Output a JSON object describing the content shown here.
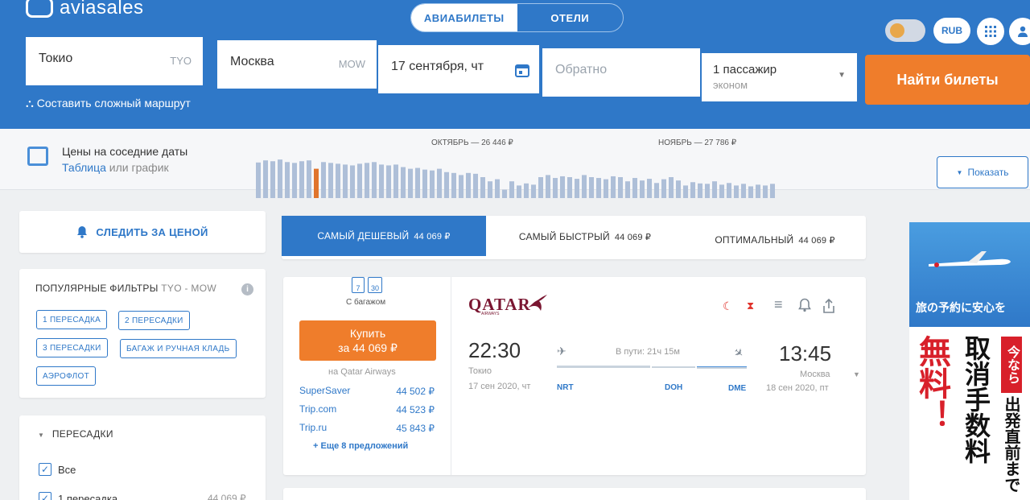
{
  "brand": {
    "name": "aviasales"
  },
  "header_tabs": [
    {
      "label": "АВИАБИЛЕТЫ"
    },
    {
      "label": "ОТЕЛИ"
    }
  ],
  "currency": "RUB",
  "search": {
    "from_city": "Токио",
    "from_code": "TYO",
    "to_city": "Москва",
    "to_code": "MOW",
    "depart_date": "17 сентября, чт",
    "return_placeholder": "Обратно",
    "passengers": "1 пассажир",
    "cabin": "эконом",
    "submit_label": "Найти билеты",
    "complex_route_label": "Составить сложный маршрут"
  },
  "price_calendar": {
    "title": "Цены на соседние даты",
    "link_table": "Таблица",
    "link_or": "или",
    "link_chart": "график",
    "october_label": "ОКТЯБРЬ — 26 446 ₽",
    "november_label": "НОЯБРЬ — 27 786 ₽",
    "show_label": "Показать",
    "selected_index": 8,
    "bar_levels": [
      0.85,
      0.9,
      0.88,
      0.92,
      0.86,
      0.84,
      0.88,
      0.9,
      0.7,
      0.86,
      0.84,
      0.82,
      0.8,
      0.78,
      0.82,
      0.84,
      0.86,
      0.8,
      0.78,
      0.8,
      0.74,
      0.7,
      0.72,
      0.68,
      0.66,
      0.7,
      0.62,
      0.6,
      0.55,
      0.6,
      0.58,
      0.5,
      0.4,
      0.45,
      0.2,
      0.4,
      0.3,
      0.35,
      0.32,
      0.5,
      0.55,
      0.48,
      0.52,
      0.5,
      0.46,
      0.55,
      0.5,
      0.48,
      0.45,
      0.52,
      0.5,
      0.4,
      0.48,
      0.42,
      0.46,
      0.36,
      0.45,
      0.5,
      0.42,
      0.3,
      0.38,
      0.35,
      0.34,
      0.4,
      0.32,
      0.36,
      0.3,
      0.34,
      0.28,
      0.32,
      0.3,
      0.34
    ]
  },
  "sidebar": {
    "track_price_label": "СЛЕДИТЬ ЗА ЦЕНОЙ",
    "popular_filters_title": "ПОПУЛЯРНЫЕ ФИЛЬТРЫ",
    "popular_filters_route": "TYO - MOW",
    "chips": [
      "1 ПЕРЕСАДКА",
      "2 ПЕРЕСАДКИ",
      "3 ПЕРЕСАДКИ",
      "БАГАЖ И РУЧНАЯ КЛАДЬ",
      "АЭРОФЛОТ"
    ],
    "stops_title": "ПЕРЕСАДКИ",
    "stops_options": [
      {
        "label": "Все",
        "price": ""
      },
      {
        "label": "1 пересадка",
        "price": "44 069 ₽"
      }
    ]
  },
  "sort_tabs": [
    {
      "label": "САМЫЙ ДЕШЕВЫЙ",
      "price": "44 069 ₽"
    },
    {
      "label": "САМЫЙ БЫСТРЫЙ",
      "price": "44 069 ₽"
    },
    {
      "label": "ОПТИМАЛЬНЫЙ",
      "price": "44 069 ₽"
    }
  ],
  "ticket": {
    "baggage_label": "С багажом",
    "baggage_kg_1": "7",
    "baggage_kg_2": "30",
    "buy_label": "Купить",
    "buy_price": "за 44 069 ₽",
    "seller": "на Qatar Airways",
    "offers": [
      {
        "agent": "SuperSaver",
        "price": "44 502 ₽"
      },
      {
        "agent": "Trip.com",
        "price": "44 523 ₽"
      },
      {
        "agent": "Trip.ru",
        "price": "45 843 ₽"
      }
    ],
    "more_offers": "+ Еще 8 предложений",
    "airline": "QATAR",
    "airline_sub": "AIRWAYS",
    "depart_time": "22:30",
    "depart_city": "Токио",
    "depart_date": "17 сен 2020, чт",
    "arrive_time": "13:45",
    "arrive_city": "Москва",
    "arrive_date": "18 сен 2020, пт",
    "duration": "В пути: 21ч 15м",
    "airports": [
      "NRT",
      "DOH",
      "DME"
    ]
  },
  "ad": {
    "headline": "旅の予約に安心を",
    "red": "無料！",
    "black1": "取消手数料",
    "badge": "今なら",
    "black2": "出発直前まで"
  },
  "colors": {
    "primary": "#2f78c8",
    "accent": "#ef7d2b"
  }
}
